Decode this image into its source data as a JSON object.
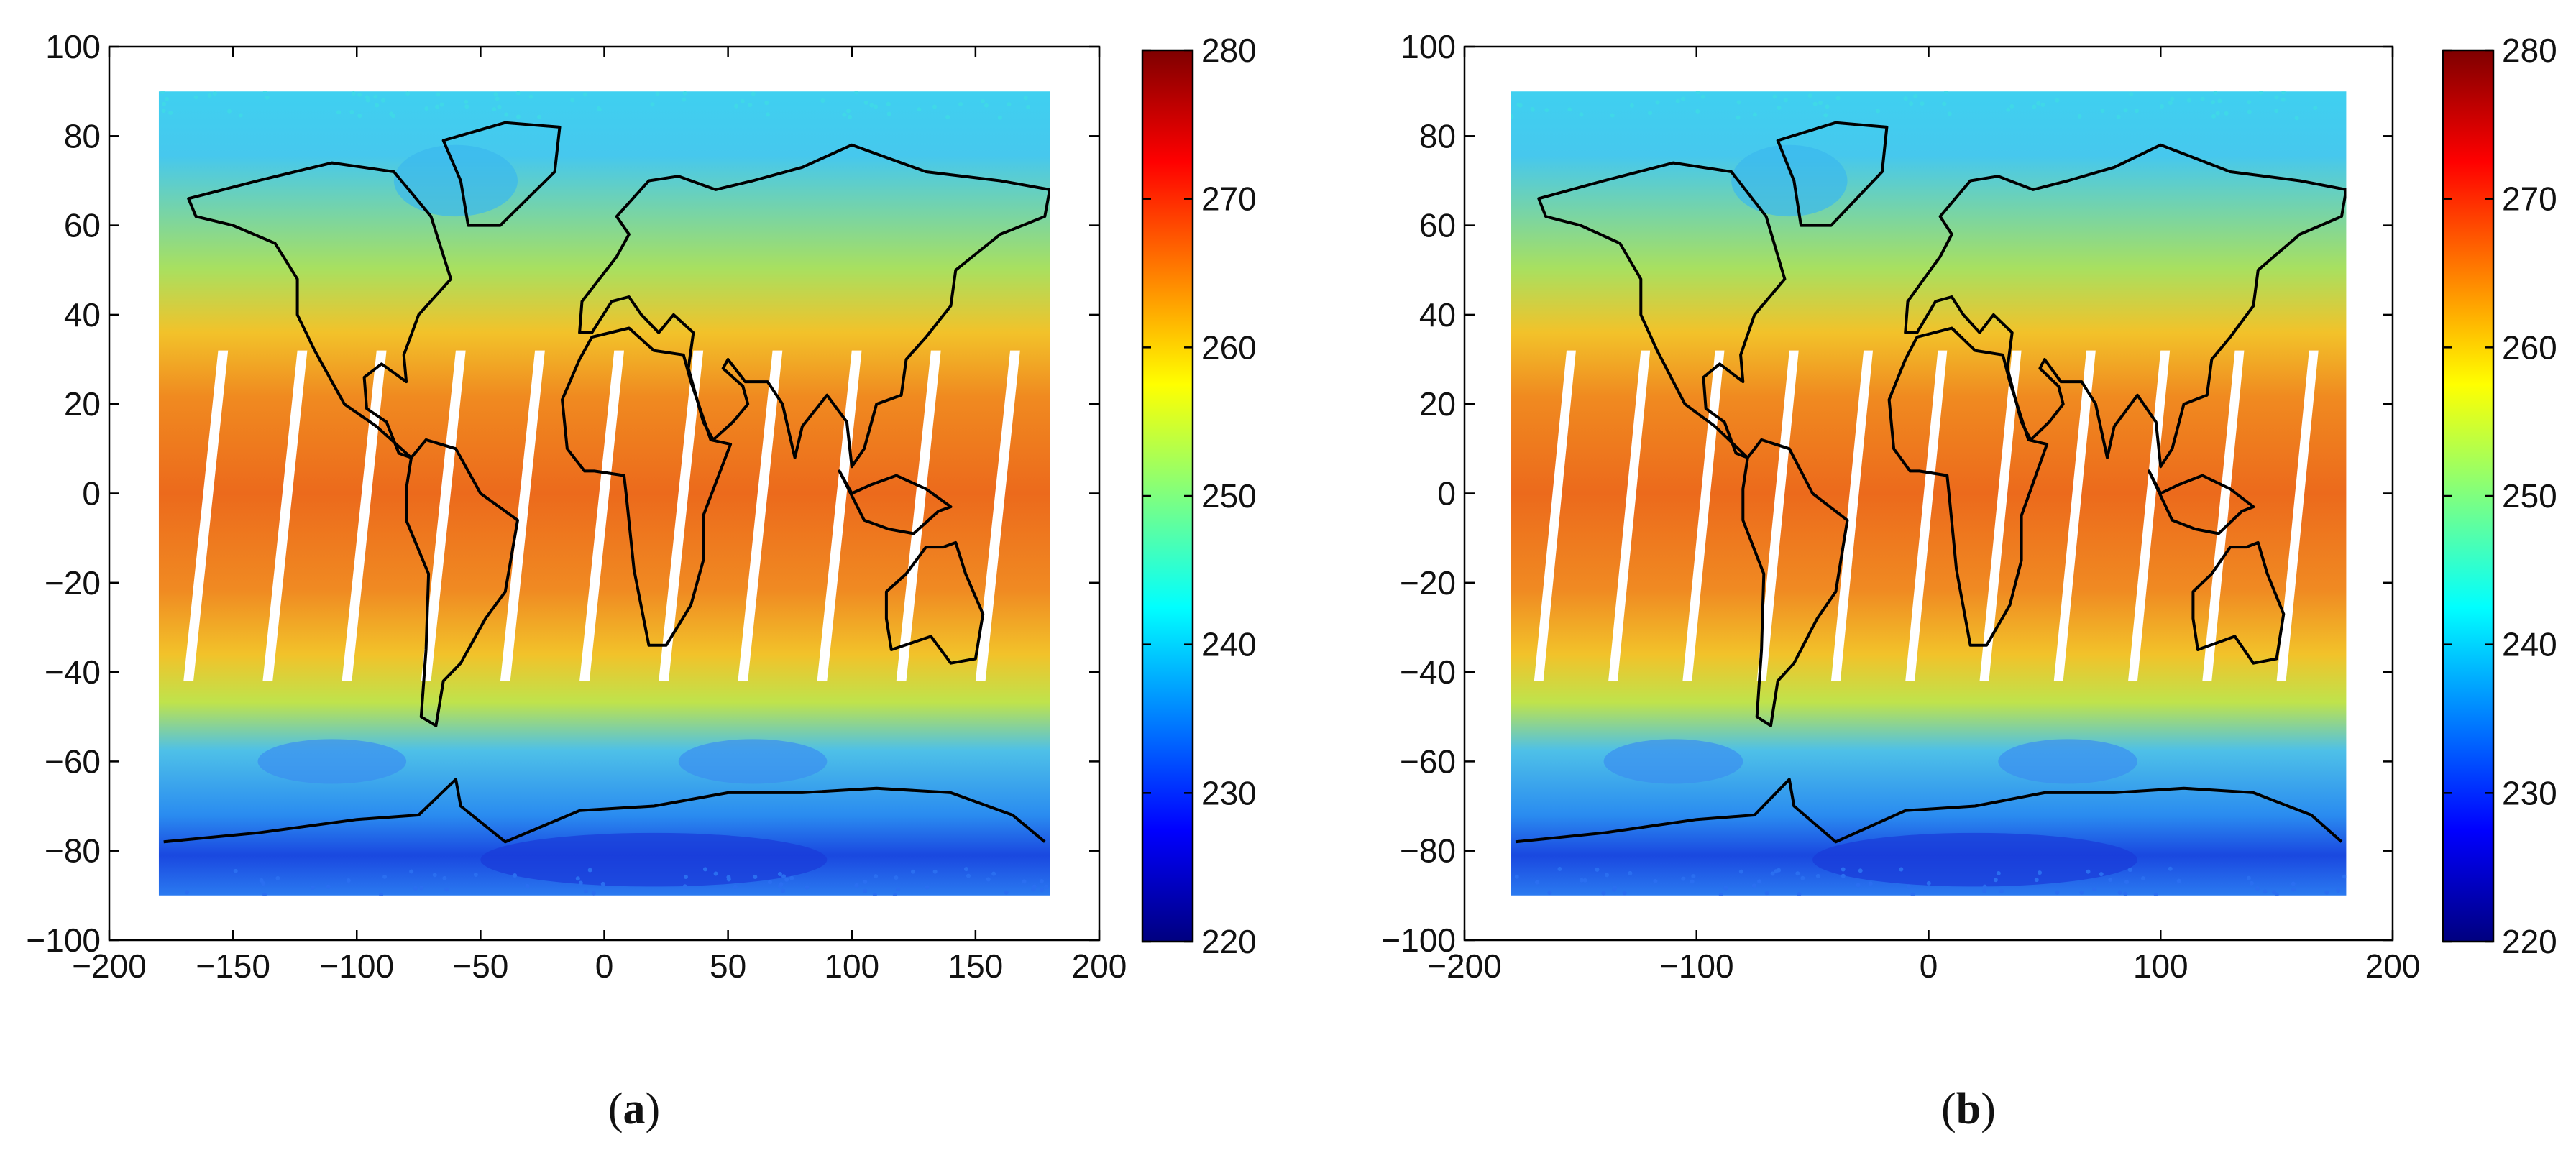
{
  "chart_data": [
    {
      "type": "heatmap",
      "panel_label": "a",
      "caption_open": "(",
      "caption_close": ")",
      "xlim": [
        -200,
        200
      ],
      "ylim": [
        -100,
        100
      ],
      "xticks": [
        -200,
        -150,
        -100,
        -50,
        0,
        50,
        100,
        150,
        200
      ],
      "yticks": [
        100,
        80,
        60,
        40,
        20,
        0,
        -20,
        -40,
        -60,
        -80,
        -100
      ],
      "xtick_labels": [
        "−200",
        "−150",
        "−100",
        "−50",
        "0",
        "50",
        "100",
        "150",
        "200"
      ],
      "ytick_labels": [
        "100",
        "80",
        "60",
        "40",
        "20",
        "0",
        "−20",
        "−40",
        "−60",
        "−80",
        "−100"
      ],
      "colorbar": {
        "range": [
          220,
          280
        ],
        "ticks": [
          280,
          270,
          260,
          250,
          240,
          230,
          220
        ],
        "colormap": "jet"
      },
      "data_extent": {
        "lon": [
          -180,
          180
        ],
        "lat": [
          -90,
          90
        ]
      },
      "xlabel": "",
      "ylabel": "",
      "title": ""
    },
    {
      "type": "heatmap",
      "panel_label": "b",
      "caption_open": "(",
      "caption_close": ")",
      "xlim": [
        -200,
        200
      ],
      "ylim": [
        -100,
        100
      ],
      "xticks": [
        -200,
        -100,
        0,
        100,
        200
      ],
      "yticks": [
        100,
        80,
        60,
        40,
        20,
        0,
        -20,
        -40,
        -60,
        -80,
        -100
      ],
      "xtick_labels": [
        "−200",
        "−100",
        "0",
        "100",
        "200"
      ],
      "ytick_labels": [
        "100",
        "80",
        "60",
        "40",
        "20",
        "0",
        "−20",
        "−40",
        "−60",
        "−80",
        "−100"
      ],
      "colorbar": {
        "range": [
          220,
          280
        ],
        "ticks": [
          280,
          270,
          260,
          250,
          240,
          230,
          220
        ],
        "colormap": "jet"
      },
      "data_extent": {
        "lon": [
          -180,
          180
        ],
        "lat": [
          -90,
          90
        ]
      },
      "xlabel": "",
      "ylabel": "",
      "title": ""
    }
  ],
  "colors": {
    "jet": [
      "#00007f",
      "#0000ff",
      "#007fff",
      "#00ffff",
      "#7fff7f",
      "#ffff00",
      "#ff7f00",
      "#ff0000",
      "#7f0000"
    ],
    "coastline": "#000000",
    "axes": "#000000"
  }
}
